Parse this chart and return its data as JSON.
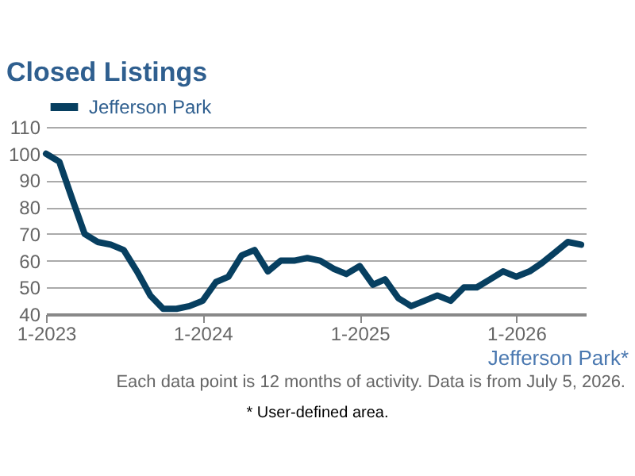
{
  "chart_data": {
    "type": "line",
    "title": "Closed Listings",
    "x": [
      "2023-01",
      "2023-02",
      "2023-03",
      "2023-04",
      "2023-05",
      "2023-06",
      "2023-07",
      "2023-08",
      "2023-09",
      "2023-10",
      "2023-11",
      "2023-12",
      "2024-01",
      "2024-02",
      "2024-03",
      "2024-04",
      "2024-05",
      "2024-06",
      "2024-07",
      "2024-08",
      "2024-09",
      "2024-10",
      "2024-11",
      "2024-12",
      "2025-01",
      "2025-02",
      "2025-03",
      "2025-04",
      "2025-05",
      "2025-06",
      "2025-07",
      "2025-08",
      "2025-09",
      "2025-10",
      "2025-11",
      "2025-12",
      "2026-01",
      "2026-02",
      "2026-03",
      "2026-04",
      "2026-05",
      "2026-06"
    ],
    "series": [
      {
        "name": "Jefferson Park",
        "color": "#073f60",
        "values": [
          100,
          97,
          84,
          70,
          67,
          66,
          64,
          56,
          47,
          42,
          42,
          43,
          45,
          52,
          54,
          62,
          64,
          56,
          60,
          60,
          61,
          60,
          57,
          55,
          58,
          51,
          53,
          46,
          43,
          45,
          47,
          45,
          50,
          50,
          53,
          56,
          54,
          56,
          59,
          63,
          67,
          66
        ]
      }
    ],
    "xlim": [
      "2023-01-01",
      "2026-06-12"
    ],
    "xticks": [
      {
        "value": "2023-01",
        "label": "1-2023"
      },
      {
        "value": "2024-01",
        "label": "1-2024"
      },
      {
        "value": "2025-01",
        "label": "1-2025"
      },
      {
        "value": "2026-01",
        "label": "1-2026"
      }
    ],
    "ylim": [
      40,
      110
    ],
    "yticks": [
      40,
      50,
      60,
      70,
      80,
      90,
      100,
      110
    ],
    "grid": "y",
    "legend": "top",
    "marker": "none",
    "line_style": "solid",
    "annotations": [
      "Jefferson Park*",
      "Each data point is 12 months of activity. Data is from July 5, 2026.",
      "* User-defined area."
    ]
  }
}
